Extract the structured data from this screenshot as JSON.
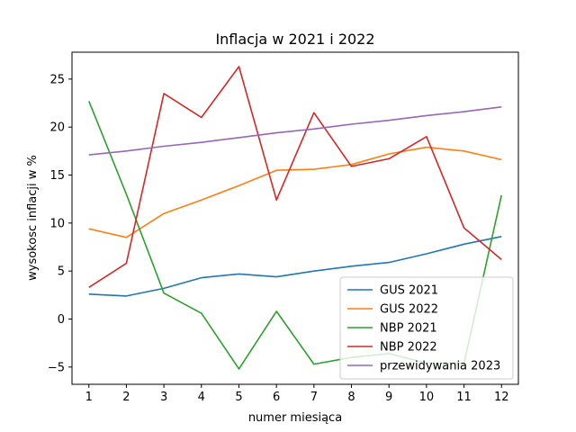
{
  "chart_data": {
    "type": "line",
    "title": "Inflacja w 2021 i 2022",
    "xlabel": "numer miesiąca",
    "ylabel": "wysokosc inflacji w %",
    "x": [
      1,
      2,
      3,
      4,
      5,
      6,
      7,
      8,
      9,
      10,
      11,
      12
    ],
    "xlim": [
      0.55,
      12.45
    ],
    "ylim": [
      -6.8,
      27.8
    ],
    "yticks": [
      -5,
      0,
      5,
      10,
      15,
      20,
      25
    ],
    "grid": false,
    "legend_position": "lower-right",
    "series": [
      {
        "name": "GUS 2021",
        "color": "#1f77b4",
        "values": [
          2.6,
          2.4,
          3.2,
          4.3,
          4.7,
          4.4,
          5.0,
          5.5,
          5.9,
          6.8,
          7.8,
          8.6
        ]
      },
      {
        "name": "GUS 2022",
        "color": "#ff7f0e",
        "values": [
          9.4,
          8.5,
          11.0,
          12.4,
          13.9,
          15.5,
          15.6,
          16.1,
          17.2,
          17.9,
          17.5,
          16.6
        ]
      },
      {
        "name": "NBP 2021",
        "color": "#2ca02c",
        "values": [
          22.7,
          13.0,
          2.7,
          0.6,
          -5.2,
          0.8,
          -4.7,
          -4.0,
          -3.6,
          -4.6,
          -4.6,
          12.9
        ]
      },
      {
        "name": "NBP 2022",
        "color": "#d62728",
        "values": [
          3.3,
          5.8,
          23.5,
          21.0,
          26.3,
          12.4,
          21.5,
          15.9,
          16.7,
          19.0,
          9.5,
          6.2
        ]
      },
      {
        "name": "przewidywania 2023",
        "color": "#9467bd",
        "values": [
          17.1,
          17.5,
          18.0,
          18.4,
          18.9,
          19.4,
          19.8,
          20.3,
          20.7,
          21.2,
          21.6,
          22.1
        ]
      }
    ]
  }
}
